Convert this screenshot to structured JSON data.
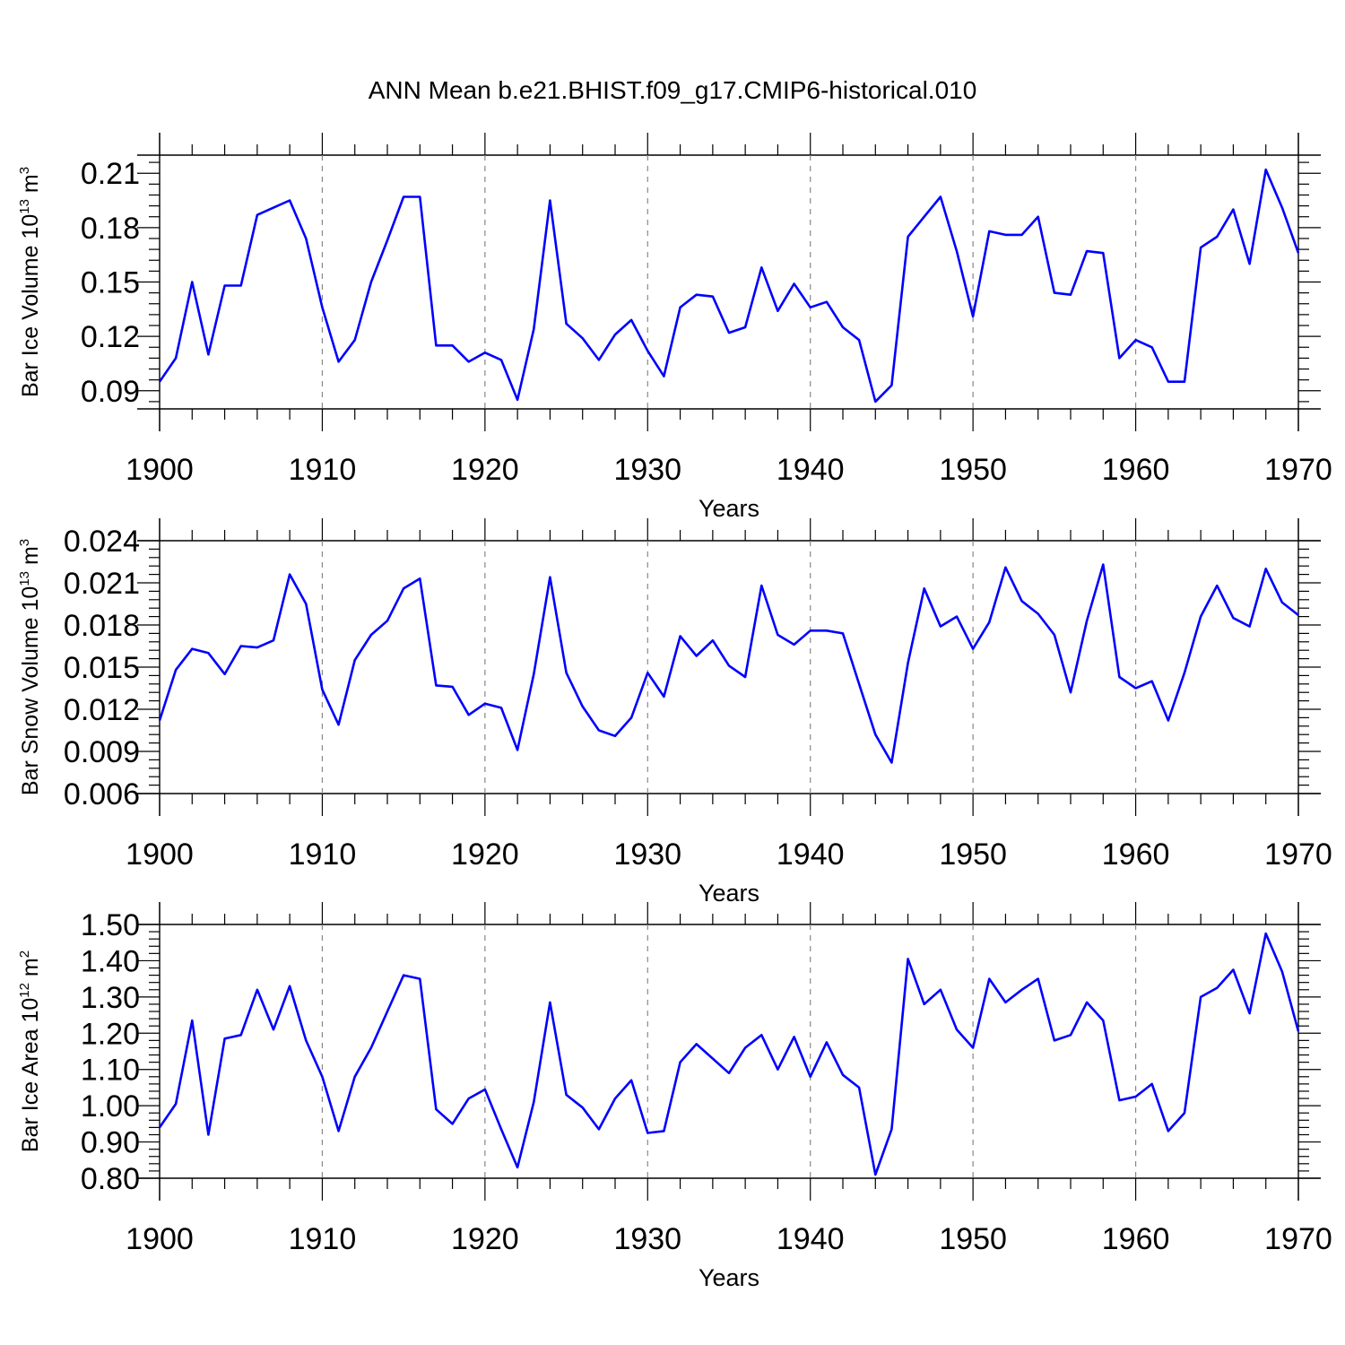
{
  "title": "ANN Mean b.e21.BHIST.f09_g17.CMIP6-historical.010",
  "series_color": "#0000ff",
  "chart_data": [
    {
      "type": "line",
      "ylabel_main": "Bar Ice Volume 10",
      "ylabel_exp": "13",
      "ylabel_unit": " m",
      "ylabel_unit_exp": "3",
      "xlabel": "Years",
      "xlim": [
        1900,
        1970
      ],
      "ylim": [
        0.08,
        0.22
      ],
      "x_ticks": [
        "1900",
        "1910",
        "1920",
        "1930",
        "1940",
        "1950",
        "1960",
        "1970"
      ],
      "y_tick_values": [
        0.09,
        0.12,
        0.15,
        0.18,
        0.21
      ],
      "y_tick_labels": [
        "0.09",
        "0.12",
        "0.15",
        "0.18",
        "0.21"
      ],
      "grid": "dashed vertical lines at decades",
      "x": [
        1900,
        1901,
        1902,
        1903,
        1904,
        1905,
        1906,
        1907,
        1908,
        1909,
        1910,
        1911,
        1912,
        1913,
        1914,
        1915,
        1916,
        1917,
        1918,
        1919,
        1920,
        1921,
        1922,
        1923,
        1924,
        1925,
        1926,
        1927,
        1928,
        1929,
        1930,
        1931,
        1932,
        1933,
        1934,
        1935,
        1936,
        1937,
        1938,
        1939,
        1940,
        1941,
        1942,
        1943,
        1944,
        1945,
        1946,
        1947,
        1948,
        1949,
        1950,
        1951,
        1952,
        1953,
        1954,
        1955,
        1956,
        1957,
        1958,
        1959,
        1960,
        1961,
        1962,
        1963,
        1964,
        1965,
        1966,
        1967,
        1968,
        1969,
        1970
      ],
      "values": [
        0.095,
        0.108,
        0.15,
        0.11,
        0.148,
        0.148,
        0.187,
        0.191,
        0.195,
        0.174,
        0.136,
        0.106,
        0.118,
        0.15,
        0.173,
        0.197,
        0.197,
        0.115,
        0.115,
        0.106,
        0.111,
        0.107,
        0.085,
        0.124,
        0.195,
        0.127,
        0.119,
        0.107,
        0.121,
        0.129,
        0.112,
        0.098,
        0.136,
        0.143,
        0.142,
        0.122,
        0.125,
        0.158,
        0.134,
        0.149,
        0.136,
        0.139,
        0.125,
        0.118,
        0.084,
        0.093,
        0.175,
        0.186,
        0.197,
        0.167,
        0.131,
        0.178,
        0.176,
        0.176,
        0.186,
        0.144,
        0.143,
        0.167,
        0.166,
        0.108,
        0.118,
        0.114,
        0.095,
        0.095,
        0.169,
        0.175,
        0.19,
        0.16,
        0.212,
        0.191,
        0.166
      ]
    },
    {
      "type": "line",
      "ylabel_main": "Bar Snow Volume 10",
      "ylabel_exp": "13",
      "ylabel_unit": " m",
      "ylabel_unit_exp": "3",
      "xlabel": "Years",
      "xlim": [
        1900,
        1970
      ],
      "ylim": [
        0.006,
        0.024
      ],
      "x_ticks": [
        "1900",
        "1910",
        "1920",
        "1930",
        "1940",
        "1950",
        "1960",
        "1970"
      ],
      "y_tick_values": [
        0.006,
        0.009,
        0.012,
        0.015,
        0.018,
        0.021,
        0.024
      ],
      "y_tick_labels": [
        "0.006",
        "0.009",
        "0.012",
        "0.015",
        "0.018",
        "0.021",
        "0.024"
      ],
      "grid": "dashed vertical lines at decades",
      "x": [
        1900,
        1901,
        1902,
        1903,
        1904,
        1905,
        1906,
        1907,
        1908,
        1909,
        1910,
        1911,
        1912,
        1913,
        1914,
        1915,
        1916,
        1917,
        1918,
        1919,
        1920,
        1921,
        1922,
        1923,
        1924,
        1925,
        1926,
        1927,
        1928,
        1929,
        1930,
        1931,
        1932,
        1933,
        1934,
        1935,
        1936,
        1937,
        1938,
        1939,
        1940,
        1941,
        1942,
        1943,
        1944,
        1945,
        1946,
        1947,
        1948,
        1949,
        1950,
        1951,
        1952,
        1953,
        1954,
        1955,
        1956,
        1957,
        1958,
        1959,
        1960,
        1961,
        1962,
        1963,
        1964,
        1965,
        1966,
        1967,
        1968,
        1969,
        1970
      ],
      "values": [
        0.0112,
        0.0148,
        0.0163,
        0.016,
        0.0145,
        0.0165,
        0.0164,
        0.0169,
        0.0216,
        0.0195,
        0.0134,
        0.0109,
        0.0155,
        0.0173,
        0.0183,
        0.0206,
        0.0213,
        0.0137,
        0.0136,
        0.0116,
        0.0124,
        0.0121,
        0.0091,
        0.0145,
        0.0214,
        0.0146,
        0.0122,
        0.0105,
        0.0101,
        0.0114,
        0.0146,
        0.0129,
        0.0172,
        0.0158,
        0.0169,
        0.0151,
        0.0143,
        0.0208,
        0.0173,
        0.0166,
        0.0176,
        0.0176,
        0.0174,
        0.0138,
        0.0102,
        0.0082,
        0.0153,
        0.0206,
        0.0179,
        0.0186,
        0.0163,
        0.0182,
        0.0221,
        0.0197,
        0.0188,
        0.0173,
        0.0132,
        0.0183,
        0.0223,
        0.0143,
        0.0135,
        0.014,
        0.0112,
        0.0146,
        0.0186,
        0.0208,
        0.0185,
        0.0179,
        0.022,
        0.0196,
        0.0187
      ]
    },
    {
      "type": "line",
      "ylabel_main": "Bar Ice Area 10",
      "ylabel_exp": "12",
      "ylabel_unit": " m",
      "ylabel_unit_exp": "2",
      "xlabel": "Years",
      "xlim": [
        1900,
        1970
      ],
      "ylim": [
        0.8,
        1.5
      ],
      "x_ticks": [
        "1900",
        "1910",
        "1920",
        "1930",
        "1940",
        "1950",
        "1960",
        "1970"
      ],
      "y_tick_values": [
        0.8,
        0.9,
        1.0,
        1.1,
        1.2,
        1.3,
        1.4,
        1.5
      ],
      "y_tick_labels": [
        "0.80",
        "0.90",
        "1.00",
        "1.10",
        "1.20",
        "1.30",
        "1.40",
        "1.50"
      ],
      "grid": "dashed vertical lines at decades",
      "x": [
        1900,
        1901,
        1902,
        1903,
        1904,
        1905,
        1906,
        1907,
        1908,
        1909,
        1910,
        1911,
        1912,
        1913,
        1914,
        1915,
        1916,
        1917,
        1918,
        1919,
        1920,
        1921,
        1922,
        1923,
        1924,
        1925,
        1926,
        1927,
        1928,
        1929,
        1930,
        1931,
        1932,
        1933,
        1934,
        1935,
        1936,
        1937,
        1938,
        1939,
        1940,
        1941,
        1942,
        1943,
        1944,
        1945,
        1946,
        1947,
        1948,
        1949,
        1950,
        1951,
        1952,
        1953,
        1954,
        1955,
        1956,
        1957,
        1958,
        1959,
        1960,
        1961,
        1962,
        1963,
        1964,
        1965,
        1966,
        1967,
        1968,
        1969,
        1970
      ],
      "values": [
        0.94,
        1.005,
        1.235,
        0.92,
        1.185,
        1.195,
        1.32,
        1.21,
        1.33,
        1.18,
        1.08,
        0.93,
        1.08,
        1.16,
        1.26,
        1.36,
        1.35,
        0.99,
        0.95,
        1.02,
        1.045,
        0.935,
        0.83,
        1.01,
        1.285,
        1.03,
        0.995,
        0.935,
        1.02,
        1.07,
        0.925,
        0.93,
        1.12,
        1.17,
        1.13,
        1.09,
        1.16,
        1.195,
        1.1,
        1.19,
        1.08,
        1.175,
        1.085,
        1.05,
        0.81,
        0.935,
        1.405,
        1.28,
        1.32,
        1.21,
        1.16,
        1.35,
        1.285,
        1.32,
        1.35,
        1.18,
        1.195,
        1.285,
        1.235,
        1.015,
        1.025,
        1.06,
        0.93,
        0.98,
        1.3,
        1.325,
        1.375,
        1.255,
        1.475,
        1.37,
        1.205
      ]
    }
  ]
}
